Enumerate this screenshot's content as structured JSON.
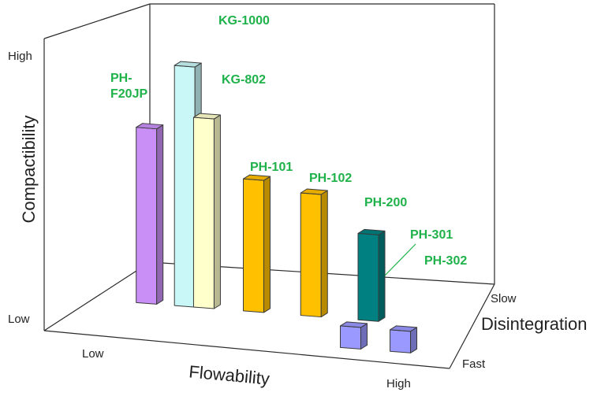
{
  "chart_data": {
    "type": "bar",
    "title": "",
    "xlabel": "Flowability",
    "ylabel": "Compactibility",
    "zlabel": "Disintegration",
    "x_ticks": [
      "Low",
      "High"
    ],
    "y_ticks": [
      "Low",
      "High"
    ],
    "z_ticks": [
      "Slow",
      "Fast"
    ],
    "label_color": "#1fb24a",
    "categories": [
      "PH-F20JP",
      "KG-1000",
      "KG-802",
      "PH-101",
      "PH-102",
      "PH-200",
      "PH-301",
      "PH-302"
    ],
    "label_lines": [
      [
        "PH-",
        "F20JP"
      ],
      [
        "KG-1000"
      ],
      [
        "KG-802"
      ],
      [
        "PH-101"
      ],
      [
        "PH-102"
      ],
      [
        "PH-200"
      ],
      [
        "PH-301"
      ],
      [
        "PH-302"
      ]
    ],
    "values": [
      0.73,
      1.0,
      0.79,
      0.55,
      0.51,
      0.36,
      0.09,
      0.09
    ],
    "flowability": [
      0.12,
      0.22,
      0.27,
      0.4,
      0.55,
      0.7,
      0.7,
      0.83
    ],
    "disintegration": [
      0.45,
      0.45,
      0.45,
      0.45,
      0.45,
      0.45,
      0.9,
      0.9
    ],
    "colors": [
      "#c98ff7",
      "#c9f7f7",
      "#ffffcc",
      "#ffc000",
      "#ffc000",
      "#008080",
      "#9999ff",
      "#9999ff"
    ]
  }
}
